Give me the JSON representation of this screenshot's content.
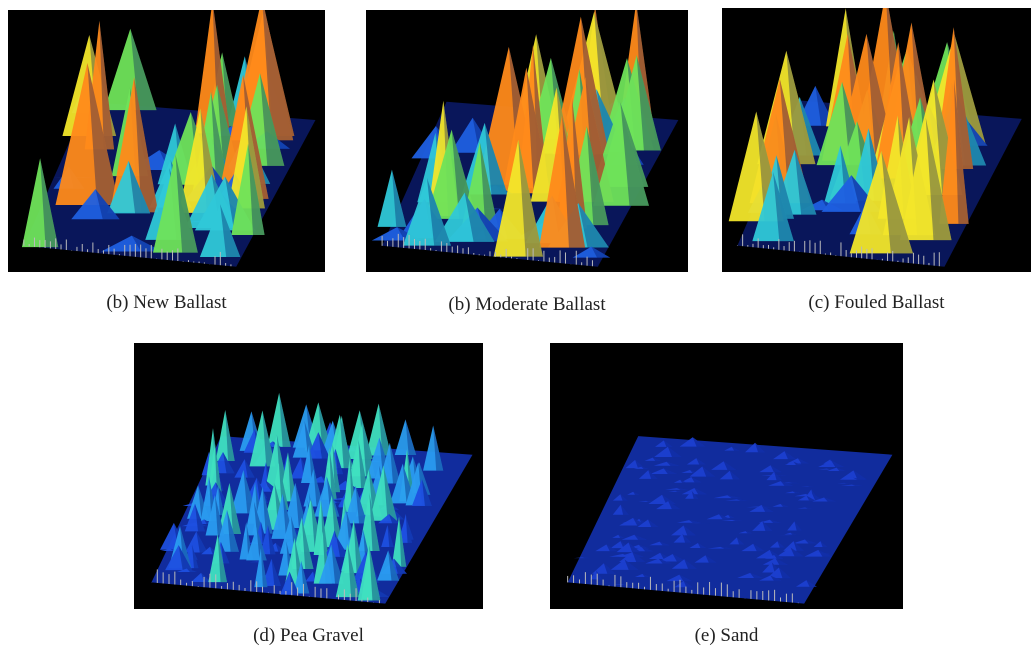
{
  "figure": {
    "panels": [
      {
        "caption": "(b) New Ballast"
      },
      {
        "caption": "(b) Moderate Ballast"
      },
      {
        "caption": "(c) Fouled Ballast"
      },
      {
        "caption": "(d) Pea Gravel"
      },
      {
        "caption": "(e) Sand"
      }
    ]
  }
}
